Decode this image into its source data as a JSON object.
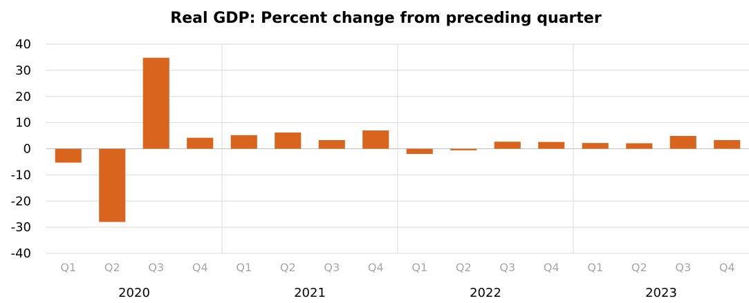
{
  "chart_data": {
    "type": "bar",
    "title": "Real GDP:  Percent change from preceding quarter",
    "xlabel": "",
    "ylabel": "",
    "ylim": [
      -40,
      40
    ],
    "yticks": [
      "40",
      "30",
      "20",
      "10",
      "0",
      "-10",
      "-20",
      "-30",
      "-40"
    ],
    "ytick_values": [
      40,
      30,
      20,
      10,
      0,
      -10,
      -20,
      -30,
      -40
    ],
    "grid": true,
    "legend": "none",
    "bar_color": "#d9641e",
    "gridline_color": "#d9d9d9",
    "quarter_label_color": "#a6a6a6",
    "categories": [
      "Q1",
      "Q2",
      "Q3",
      "Q4",
      "Q1",
      "Q2",
      "Q3",
      "Q4",
      "Q1",
      "Q2",
      "Q3",
      "Q4",
      "Q1",
      "Q2",
      "Q3",
      "Q4"
    ],
    "groups": [
      {
        "label": "2020",
        "count": 4
      },
      {
        "label": "2021",
        "count": 4
      },
      {
        "label": "2022",
        "count": 4
      },
      {
        "label": "2023",
        "count": 4
      }
    ],
    "values": [
      -5.3,
      -28.0,
      34.8,
      4.2,
      5.2,
      6.2,
      3.3,
      7.0,
      -2.0,
      -0.6,
      2.7,
      2.6,
      2.2,
      2.1,
      4.9,
      3.3
    ]
  }
}
